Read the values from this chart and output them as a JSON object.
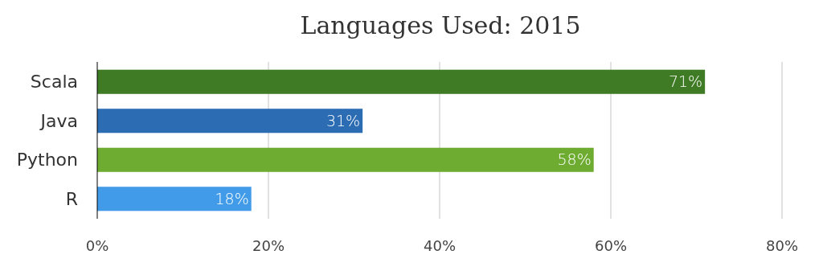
{
  "chart_data": {
    "type": "bar",
    "orientation": "horizontal",
    "title": "Languages Used: 2015",
    "categories": [
      "Scala",
      "Java",
      "Python",
      "R"
    ],
    "values": [
      71,
      31,
      58,
      18
    ],
    "colors": [
      "#3f7b24",
      "#2b6cb3",
      "#6eac31",
      "#419be8"
    ],
    "value_labels": [
      "71%",
      "31%",
      "58%",
      "18%"
    ],
    "xlim": [
      0,
      80
    ],
    "xticks": [
      {
        "value": 0,
        "label": "0%"
      },
      {
        "value": 20,
        "label": "20%"
      },
      {
        "value": 40,
        "label": "40%"
      },
      {
        "value": 60,
        "label": "60%"
      },
      {
        "value": 80,
        "label": "80%"
      }
    ],
    "grid": "x"
  }
}
